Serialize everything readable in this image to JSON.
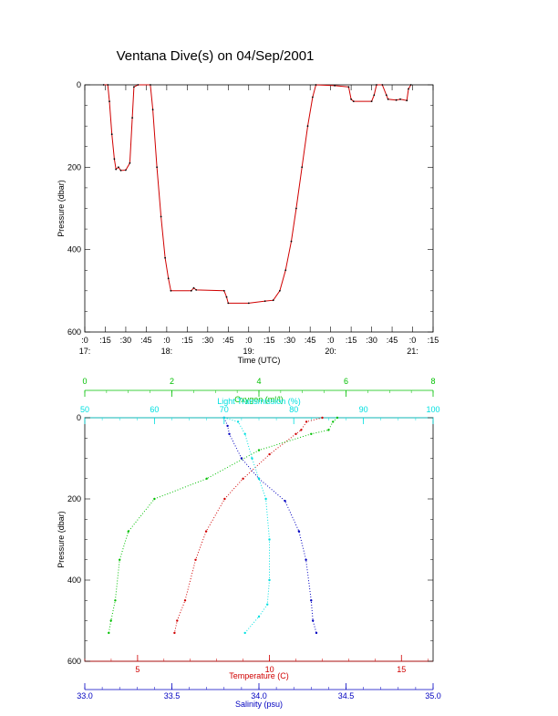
{
  "title": "Ventana Dive(s) on 04/Sep/2001",
  "chart_data": [
    {
      "type": "line",
      "xlabel": "Time (UTC)",
      "ylabel": "Pressure (dbar)",
      "yticks": [
        "0",
        "200",
        "400",
        "600"
      ],
      "ylim": [
        600,
        0
      ],
      "xlim_hours": [
        17.0,
        21.25
      ],
      "xticks": [
        {
          "h": 17.0,
          "label": ":0",
          "day": "17:"
        },
        {
          "h": 17.25,
          "label": ":15",
          "day": ""
        },
        {
          "h": 17.5,
          "label": ":30",
          "day": ""
        },
        {
          "h": 17.75,
          "label": ":45",
          "day": ""
        },
        {
          "h": 18.0,
          "label": ":0",
          "day": "18:"
        },
        {
          "h": 18.25,
          "label": ":15",
          "day": ""
        },
        {
          "h": 18.5,
          "label": ":30",
          "day": ""
        },
        {
          "h": 18.75,
          "label": ":45",
          "day": ""
        },
        {
          "h": 19.0,
          "label": ":0",
          "day": "19:"
        },
        {
          "h": 19.25,
          "label": ":15",
          "day": ""
        },
        {
          "h": 19.5,
          "label": ":30",
          "day": ""
        },
        {
          "h": 19.75,
          "label": ":45",
          "day": ""
        },
        {
          "h": 20.0,
          "label": ":0",
          "day": "20:"
        },
        {
          "h": 20.25,
          "label": ":15",
          "day": ""
        },
        {
          "h": 20.5,
          "label": ":30",
          "day": ""
        },
        {
          "h": 20.75,
          "label": ":45",
          "day": ""
        },
        {
          "h": 21.0,
          "label": ":0",
          "day": "21:"
        },
        {
          "h": 21.25,
          "label": ":15",
          "day": ""
        }
      ],
      "series": [
        {
          "color": "#d00000",
          "points": [
            [
              17.23,
              0
            ],
            [
              17.28,
              0
            ],
            [
              17.3,
              40
            ],
            [
              17.33,
              120
            ],
            [
              17.36,
              180
            ],
            [
              17.38,
              205
            ],
            [
              17.41,
              200
            ],
            [
              17.44,
              208
            ],
            [
              17.5,
              207
            ],
            [
              17.55,
              190
            ],
            [
              17.58,
              80
            ],
            [
              17.6,
              5
            ],
            [
              17.65,
              0
            ],
            [
              17.8,
              0
            ],
            [
              17.83,
              60
            ],
            [
              17.88,
              200
            ],
            [
              17.93,
              320
            ],
            [
              17.98,
              420
            ],
            [
              18.02,
              470
            ],
            [
              18.05,
              500
            ],
            [
              18.3,
              500
            ],
            [
              18.33,
              493
            ],
            [
              18.36,
              498
            ],
            [
              18.7,
              500
            ],
            [
              18.73,
              515
            ],
            [
              18.75,
              530
            ],
            [
              19.0,
              530
            ],
            [
              19.2,
              525
            ],
            [
              19.3,
              523
            ],
            [
              19.38,
              500
            ],
            [
              19.45,
              450
            ],
            [
              19.52,
              380
            ],
            [
              19.58,
              300
            ],
            [
              19.65,
              200
            ],
            [
              19.72,
              100
            ],
            [
              19.78,
              30
            ],
            [
              19.82,
              0
            ],
            [
              20.05,
              2
            ],
            [
              20.22,
              5
            ],
            [
              20.25,
              35
            ],
            [
              20.28,
              40
            ],
            [
              20.5,
              40
            ],
            [
              20.53,
              25
            ],
            [
              20.56,
              0
            ],
            [
              20.63,
              0
            ],
            [
              20.68,
              25
            ],
            [
              20.7,
              35
            ],
            [
              20.8,
              37
            ],
            [
              20.85,
              35
            ],
            [
              20.93,
              38
            ],
            [
              20.95,
              10
            ],
            [
              20.98,
              0
            ]
          ]
        }
      ]
    },
    {
      "type": "scatter",
      "ylabel": "Pressure (dbar)",
      "yticks": [
        "0",
        "200",
        "400",
        "600"
      ],
      "ylim": [
        600,
        0
      ],
      "axes": [
        {
          "key": "oxygen",
          "label": "Oxygen (ml/l)",
          "color": "#00c000",
          "range": [
            0,
            8
          ],
          "ticks": [
            "0",
            "2",
            "4",
            "6",
            "8"
          ]
        },
        {
          "key": "light",
          "label": "Light Transmission (%)",
          "color": "#00e0e0",
          "range": [
            50,
            100
          ],
          "ticks": [
            "50",
            "60",
            "70",
            "80",
            "90",
            "100"
          ]
        },
        {
          "key": "temperature",
          "label": "Temperature (C)",
          "color": "#d00000",
          "range": [
            3,
            16.2
          ],
          "ticks": [
            "5",
            "10",
            "15"
          ]
        },
        {
          "key": "salinity",
          "label": "Salinity (psu)",
          "color": "#0000c0",
          "range": [
            33.0,
            35.0
          ],
          "ticks": [
            "33.0",
            "33.5",
            "34.0",
            "34.5",
            "35.0"
          ]
        }
      ],
      "profiles": [
        {
          "key": "temperature",
          "color": "#d00000",
          "points": [
            [
              12.0,
              0
            ],
            [
              11.4,
              10
            ],
            [
              11.2,
              30
            ],
            [
              11.0,
              40
            ],
            [
              10.0,
              90
            ],
            [
              9.0,
              150
            ],
            [
              8.3,
              200
            ],
            [
              7.6,
              280
            ],
            [
              7.2,
              350
            ],
            [
              6.8,
              450
            ],
            [
              6.5,
              500
            ],
            [
              6.4,
              530
            ]
          ]
        },
        {
          "key": "oxygen",
          "color": "#00c000",
          "points": [
            [
              5.8,
              0
            ],
            [
              5.7,
              10
            ],
            [
              5.6,
              30
            ],
            [
              5.2,
              40
            ],
            [
              4.0,
              80
            ],
            [
              2.8,
              150
            ],
            [
              1.6,
              200
            ],
            [
              1.0,
              280
            ],
            [
              0.8,
              350
            ],
            [
              0.7,
              450
            ],
            [
              0.6,
              500
            ],
            [
              0.55,
              530
            ]
          ]
        },
        {
          "key": "salinity",
          "color": "#0000c0",
          "points": [
            [
              33.8,
              0
            ],
            [
              33.82,
              20
            ],
            [
              33.83,
              40
            ],
            [
              33.9,
              100
            ],
            [
              34.0,
              150
            ],
            [
              34.15,
              205
            ],
            [
              34.23,
              280
            ],
            [
              34.27,
              350
            ],
            [
              34.3,
              450
            ],
            [
              34.31,
              500
            ],
            [
              34.33,
              530
            ]
          ]
        },
        {
          "key": "light",
          "color": "#00e0e0",
          "points": [
            [
              70,
              0
            ],
            [
              72,
              10
            ],
            [
              73,
              40
            ],
            [
              74,
              100
            ],
            [
              75,
              150
            ],
            [
              76,
              200
            ],
            [
              76.5,
              300
            ],
            [
              76.5,
              400
            ],
            [
              76.2,
              460
            ],
            [
              75,
              490
            ],
            [
              73,
              530
            ]
          ]
        }
      ]
    }
  ]
}
